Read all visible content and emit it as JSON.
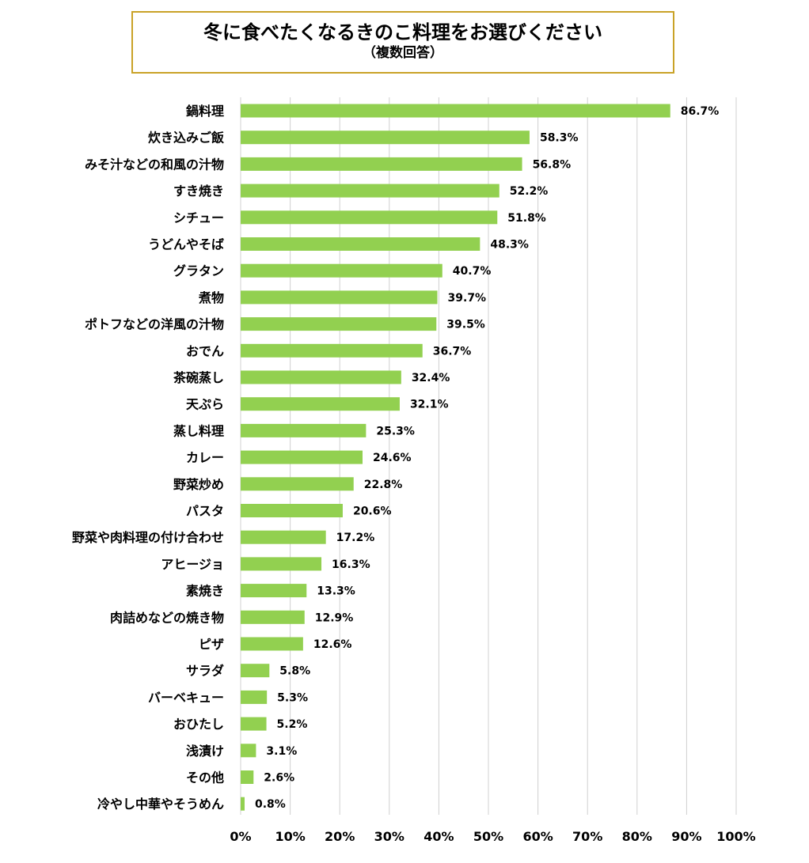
{
  "title": "冬に食べたくなるきのこ料理をお選びください",
  "subtitle": "（複数回答）",
  "chart_data": {
    "type": "bar",
    "orientation": "horizontal",
    "categories": [
      "鍋料理",
      "炊き込みご飯",
      "みそ汁などの和風の汁物",
      "すき焼き",
      "シチュー",
      "うどんやそば",
      "グラタン",
      "煮物",
      "ポトフなどの洋風の汁物",
      "おでん",
      "茶碗蒸し",
      "天ぷら",
      "蒸し料理",
      "カレー",
      "野菜炒め",
      "パスタ",
      "野菜や肉料理の付け合わせ",
      "アヒージョ",
      "素焼き",
      "肉詰めなどの焼き物",
      "ピザ",
      "サラダ",
      "バーベキュー",
      "おひたし",
      "浅漬け",
      "その他",
      "冷やし中華やそうめん"
    ],
    "values": [
      86.7,
      58.3,
      56.8,
      52.2,
      51.8,
      48.3,
      40.7,
      39.7,
      39.5,
      36.7,
      32.4,
      32.1,
      25.3,
      24.6,
      22.8,
      20.6,
      17.2,
      16.3,
      13.3,
      12.9,
      12.6,
      5.8,
      5.3,
      5.2,
      3.1,
      2.6,
      0.8
    ],
    "value_labels": [
      "86.7%",
      "58.3%",
      "56.8%",
      "52.2%",
      "51.8%",
      "48.3%",
      "40.7%",
      "39.7%",
      "39.5%",
      "36.7%",
      "32.4%",
      "32.1%",
      "25.3%",
      "24.6%",
      "22.8%",
      "20.6%",
      "17.2%",
      "16.3%",
      "13.3%",
      "12.9%",
      "12.6%",
      "5.8%",
      "5.3%",
      "5.2%",
      "3.1%",
      "2.6%",
      "0.8%"
    ],
    "xlim": [
      0,
      100
    ],
    "x_ticks": [
      "0%",
      "10%",
      "20%",
      "30%",
      "40%",
      "50%",
      "60%",
      "70%",
      "80%",
      "90%",
      "100%"
    ],
    "grid": true,
    "bar_color": "#92d050",
    "title_border_color": "#c9a227"
  }
}
